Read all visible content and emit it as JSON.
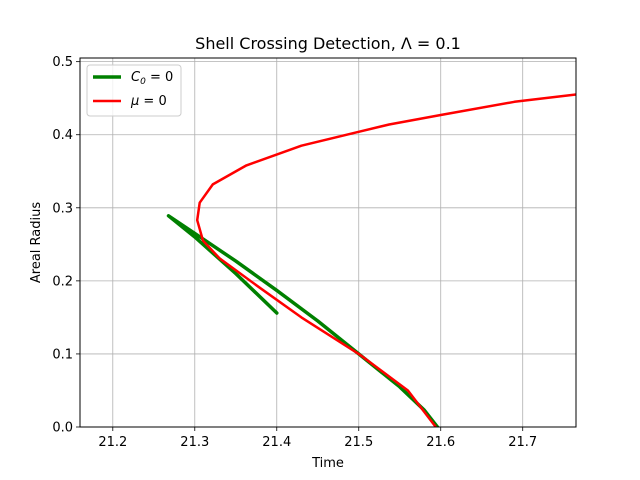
{
  "chart_data": {
    "type": "line",
    "title": "Shell Crossing Detection, Λ = 0.1",
    "xlabel": "Time",
    "ylabel": "Areal Radius",
    "xlim": [
      21.16,
      21.765
    ],
    "ylim": [
      0.0,
      0.505
    ],
    "xticks": [
      21.2,
      21.3,
      21.4,
      21.5,
      21.6,
      21.7
    ],
    "xtick_labels": [
      "21.2",
      "21.3",
      "21.4",
      "21.5",
      "21.6",
      "21.7"
    ],
    "yticks": [
      0.0,
      0.1,
      0.2,
      0.3,
      0.4,
      0.5
    ],
    "ytick_labels": [
      "0.0",
      "0.1",
      "0.2",
      "0.3",
      "0.4",
      "0.5"
    ],
    "grid": true,
    "legend_position": "top-left",
    "series": [
      {
        "name": "C₀ = 0",
        "color": "#008000",
        "points": [
          [
            21.4,
            0.156
          ],
          [
            21.35,
            0.21
          ],
          [
            21.3,
            0.26
          ],
          [
            21.268,
            0.289
          ],
          [
            21.3,
            0.265
          ],
          [
            21.35,
            0.227
          ],
          [
            21.4,
            0.187
          ],
          [
            21.45,
            0.145
          ],
          [
            21.5,
            0.1
          ],
          [
            21.55,
            0.055
          ],
          [
            21.58,
            0.023
          ],
          [
            21.596,
            0.0
          ]
        ]
      },
      {
        "name": "μ = 0",
        "color": "#ff0000",
        "points": [
          [
            21.594,
            0.0
          ],
          [
            21.56,
            0.05
          ],
          [
            21.5,
            0.1
          ],
          [
            21.43,
            0.15
          ],
          [
            21.38,
            0.19
          ],
          [
            21.33,
            0.231
          ],
          [
            21.31,
            0.255
          ],
          [
            21.303,
            0.283
          ],
          [
            21.306,
            0.307
          ],
          [
            21.322,
            0.332
          ],
          [
            21.363,
            0.358
          ],
          [
            21.43,
            0.385
          ],
          [
            21.5,
            0.404
          ],
          [
            21.537,
            0.414
          ],
          [
            21.6,
            0.427
          ],
          [
            21.69,
            0.445
          ],
          [
            21.765,
            0.455
          ]
        ]
      }
    ]
  }
}
